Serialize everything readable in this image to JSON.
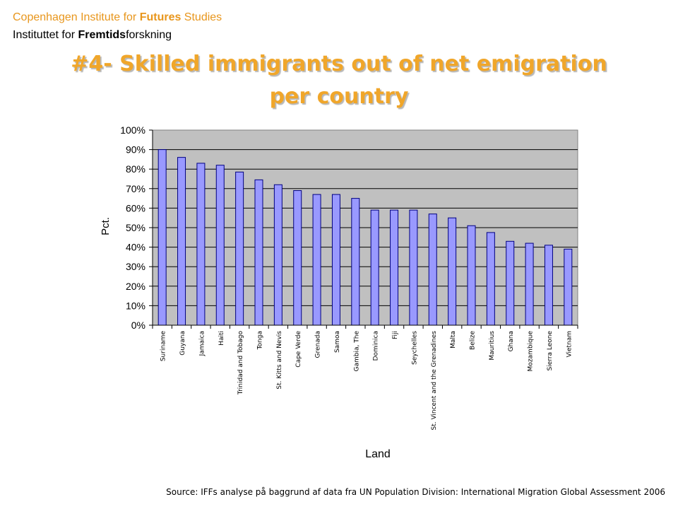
{
  "header": {
    "line1_prefix": "Copenhagen Institute for ",
    "line1_bold": "Futures",
    "line1_suffix": " Studies",
    "line2_prefix": "Instituttet for ",
    "line2_bold": "Fremtids",
    "line2_suffix": "forskning"
  },
  "title": {
    "line1": "#4- Skilled immigrants out of net emigration",
    "line2": "per country"
  },
  "source": "Source: IFFs analyse på baggrund af data fra UN Population Division: International Migration Global Assessment 2006",
  "colors": {
    "header_accent": "#e8961c",
    "title": "#f0a62a",
    "plot_background": "#c0c0c0",
    "bar_fill": "#9999ff",
    "bar_stroke": "#000080"
  },
  "chart_data": {
    "type": "bar",
    "title": "",
    "xlabel": "Land",
    "ylabel": "Pct.",
    "ylim": [
      0,
      100
    ],
    "yticks": [
      "0%",
      "10%",
      "20%",
      "30%",
      "40%",
      "50%",
      "60%",
      "70%",
      "80%",
      "90%",
      "100%"
    ],
    "grid": true,
    "legend": "none",
    "categories": [
      "Suriname",
      "Guyana",
      "Jamaica",
      "Haiti",
      "Trinidad and Tobago",
      "Tonga",
      "St. Kitts and Nevis",
      "Cape Verde",
      "Grenada",
      "Samoa",
      "Gambia, The",
      "Dominica",
      "Fiji",
      "Seychelles",
      "St. Vincent and the Grenadines",
      "Malta",
      "Belize",
      "Mauritius",
      "Ghana",
      "Mozambique",
      "Sierra Leone",
      "Vietnam"
    ],
    "values": [
      90,
      86,
      83,
      82,
      78.5,
      74.5,
      72,
      69,
      67,
      67,
      65,
      59,
      59,
      59,
      57,
      55,
      51,
      47.5,
      43,
      42,
      41,
      39
    ]
  }
}
